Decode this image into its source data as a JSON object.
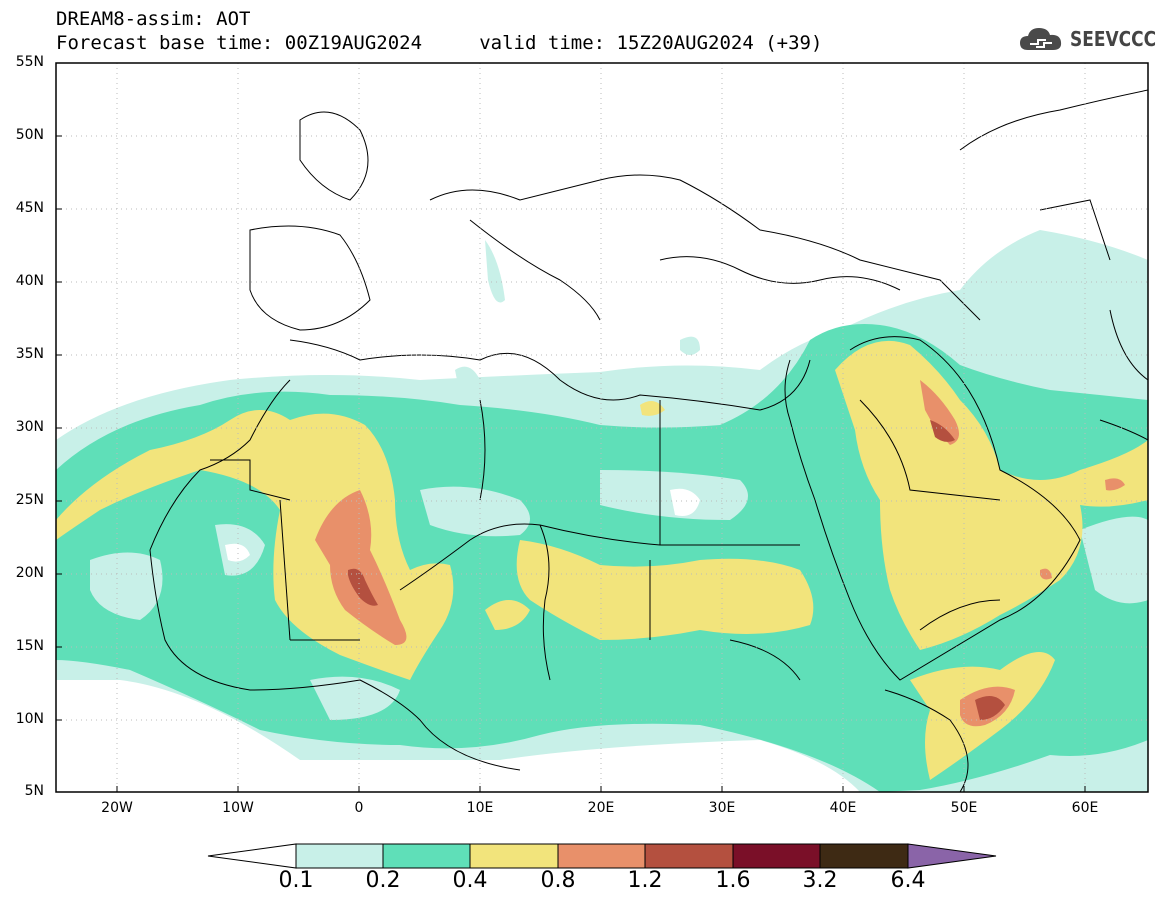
{
  "header": {
    "title": "DREAM8-assim: AOT",
    "subtitle": "Forecast base time: 00Z19AUG2024     valid time: 15Z20AUG2024 (+39)"
  },
  "logo": {
    "icon": "cloud-icon",
    "text": "SEEVCCC"
  },
  "map": {
    "lat_labels": [
      "55N",
      "50N",
      "45N",
      "40N",
      "35N",
      "30N",
      "25N",
      "20N",
      "15N",
      "10N",
      "5N"
    ],
    "lon_labels": [
      "20W",
      "10W",
      "0",
      "10E",
      "20E",
      "30E",
      "40E",
      "50E",
      "60E"
    ],
    "grid": true,
    "extent": {
      "lon": [
        -25,
        65
      ],
      "lat": [
        5,
        55
      ]
    }
  },
  "colorbar": {
    "labels": [
      "0.1",
      "0.2",
      "0.4",
      "0.8",
      "1.2",
      "1.6",
      "3.2",
      "6.4"
    ],
    "colors": [
      "#ffffff",
      "#c8f0e8",
      "#5fdfb8",
      "#f2e47c",
      "#e8906a",
      "#b4503f",
      "#7a0f28",
      "#3e2a14",
      "#8a64a8"
    ]
  }
}
